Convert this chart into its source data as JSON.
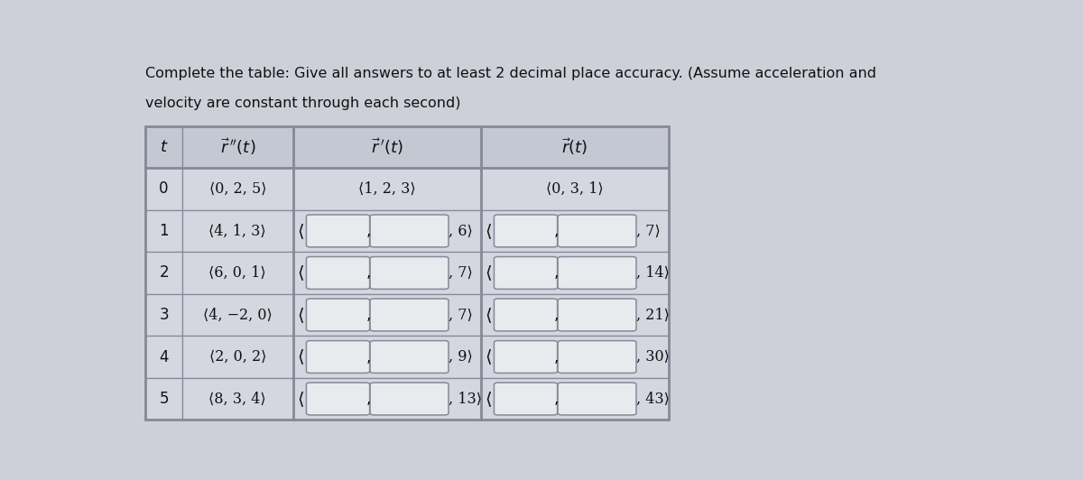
{
  "title_line1": "Complete the table: Give all answers to at least 2 decimal place accuracy. (Assume acceleration and",
  "title_line2": "velocity are constant through each second)",
  "bg_color": "#cdd0d8",
  "cell_bg_light": "#d4d7df",
  "header_bg": "#c4c8d2",
  "input_box_color": "#e8eaee",
  "input_box_edge": "#888898",
  "border_color": "#888898",
  "text_color": "#111111",
  "col_headers": [
    "t",
    "r_pp",
    "r_p",
    "r"
  ],
  "rows": [
    {
      "t": "0",
      "rpp": "⟨0, 2, 5⟩",
      "rp_boxes": false,
      "rp_given": "⟨1, 2, 3⟩",
      "r_boxes": false,
      "r_given": "⟨0, 3, 1⟩"
    },
    {
      "t": "1",
      "rpp": "⟨4, 1, 3⟩",
      "rp_boxes": true,
      "rp_end": ", 6⟩",
      "r_boxes": true,
      "r_end": ", 7⟩"
    },
    {
      "t": "2",
      "rpp": "⟨6, 0, 1⟩",
      "rp_boxes": true,
      "rp_end": ", 7⟩",
      "r_boxes": true,
      "r_end": ", 14⟩"
    },
    {
      "t": "3",
      "rpp": "⟨4, −2, 0⟩",
      "rp_boxes": true,
      "rp_end": ", 7⟩",
      "r_boxes": true,
      "r_end": ", 21⟩"
    },
    {
      "t": "4",
      "rpp": "⟨2, 0, 2⟩",
      "rp_boxes": true,
      "rp_end": ", 9⟩",
      "r_boxes": true,
      "r_end": ", 30⟩"
    },
    {
      "t": "5",
      "rpp": "⟨8, 3, 4⟩",
      "rp_boxes": true,
      "rp_end": ", 13⟩",
      "r_boxes": true,
      "r_end": ", 43⟩"
    }
  ],
  "figsize": [
    12.0,
    5.32
  ],
  "dpi": 100
}
